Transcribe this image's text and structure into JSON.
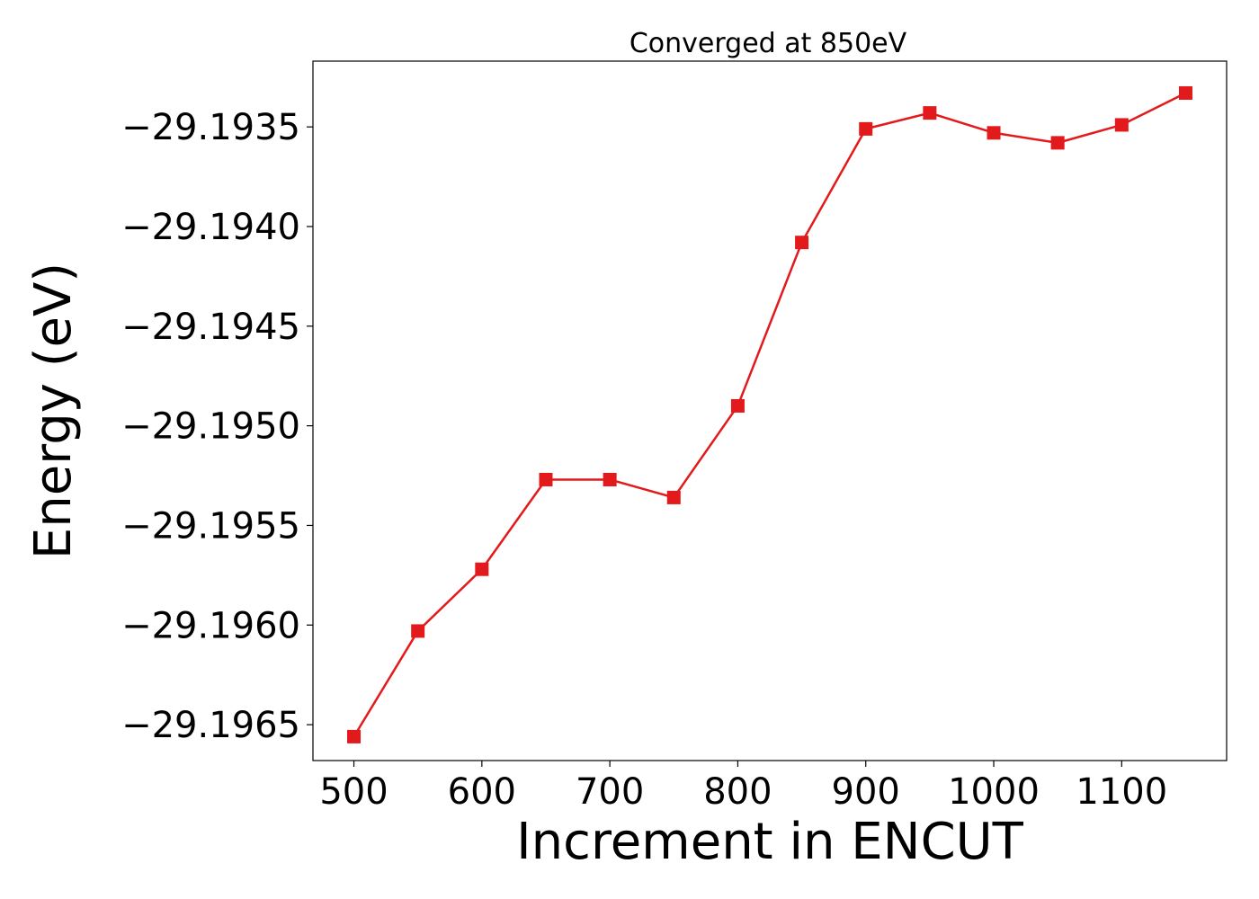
{
  "chart_data": {
    "type": "line",
    "title": "Converged at 850eV",
    "xlabel": "Increment in ENCUT",
    "ylabel": "Energy (eV)",
    "xlim": [
      468,
      1182
    ],
    "ylim": [
      -29.19668,
      -29.19317
    ],
    "xticks": [
      500,
      600,
      700,
      800,
      900,
      1000,
      1100
    ],
    "xtick_labels": [
      "500",
      "600",
      "700",
      "800",
      "900",
      "1000",
      "1100"
    ],
    "yticks": [
      -29.1965,
      -29.196,
      -29.1955,
      -29.195,
      -29.1945,
      -29.194,
      -29.1935
    ],
    "ytick_labels": [
      "−29.1965",
      "−29.1960",
      "−29.1955",
      "−29.1950",
      "−29.1945",
      "−29.1940",
      "−29.1935"
    ],
    "grid": false,
    "series": [
      {
        "name": "Energy",
        "color": "#e31a1c",
        "marker": "square",
        "x": [
          500,
          550,
          600,
          650,
          700,
          750,
          800,
          850,
          900,
          950,
          1000,
          1050,
          1100,
          1150
        ],
        "y": [
          -29.19656,
          -29.19603,
          -29.19572,
          -29.19527,
          -29.19527,
          -29.19536,
          -29.1949,
          -29.19408,
          -29.19351,
          -29.19343,
          -29.19353,
          -29.19358,
          -29.19349,
          -29.19333
        ]
      }
    ]
  }
}
